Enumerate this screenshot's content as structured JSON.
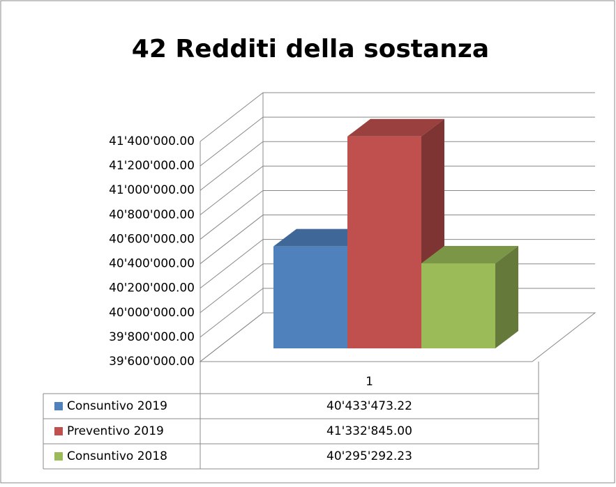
{
  "chart_data": {
    "type": "bar",
    "title": "42 Redditi della sostanza",
    "categories": [
      "1"
    ],
    "series": [
      {
        "name": "Consuntivo 2019",
        "color": "#4f81bd",
        "values": [
          40433473.22
        ],
        "value_labels": [
          "40'433'473.22"
        ]
      },
      {
        "name": "Preventivo 2019",
        "color": "#c0504d",
        "values": [
          41332845.0
        ],
        "value_labels": [
          "41'332'845.00"
        ]
      },
      {
        "name": "Consuntivo 2018",
        "color": "#9bbb59",
        "values": [
          40295292.23
        ],
        "value_labels": [
          "40'295'292.23"
        ]
      }
    ],
    "ylim": [
      39600000,
      41400000
    ],
    "yticks": [
      {
        "value": 39600000,
        "label": "39'600'000.00"
      },
      {
        "value": 39800000,
        "label": "39'800'000.00"
      },
      {
        "value": 40000000,
        "label": "40'000'000.00"
      },
      {
        "value": 40200000,
        "label": "40'200'000.00"
      },
      {
        "value": 40400000,
        "label": "40'400'000.00"
      },
      {
        "value": 40600000,
        "label": "40'600'000.00"
      },
      {
        "value": 40800000,
        "label": "40'800'000.00"
      },
      {
        "value": 41000000,
        "label": "41'000'000.00"
      },
      {
        "value": 41200000,
        "label": "41'200'000.00"
      },
      {
        "value": 41400000,
        "label": "41'400'000.00"
      }
    ],
    "grid": true
  }
}
